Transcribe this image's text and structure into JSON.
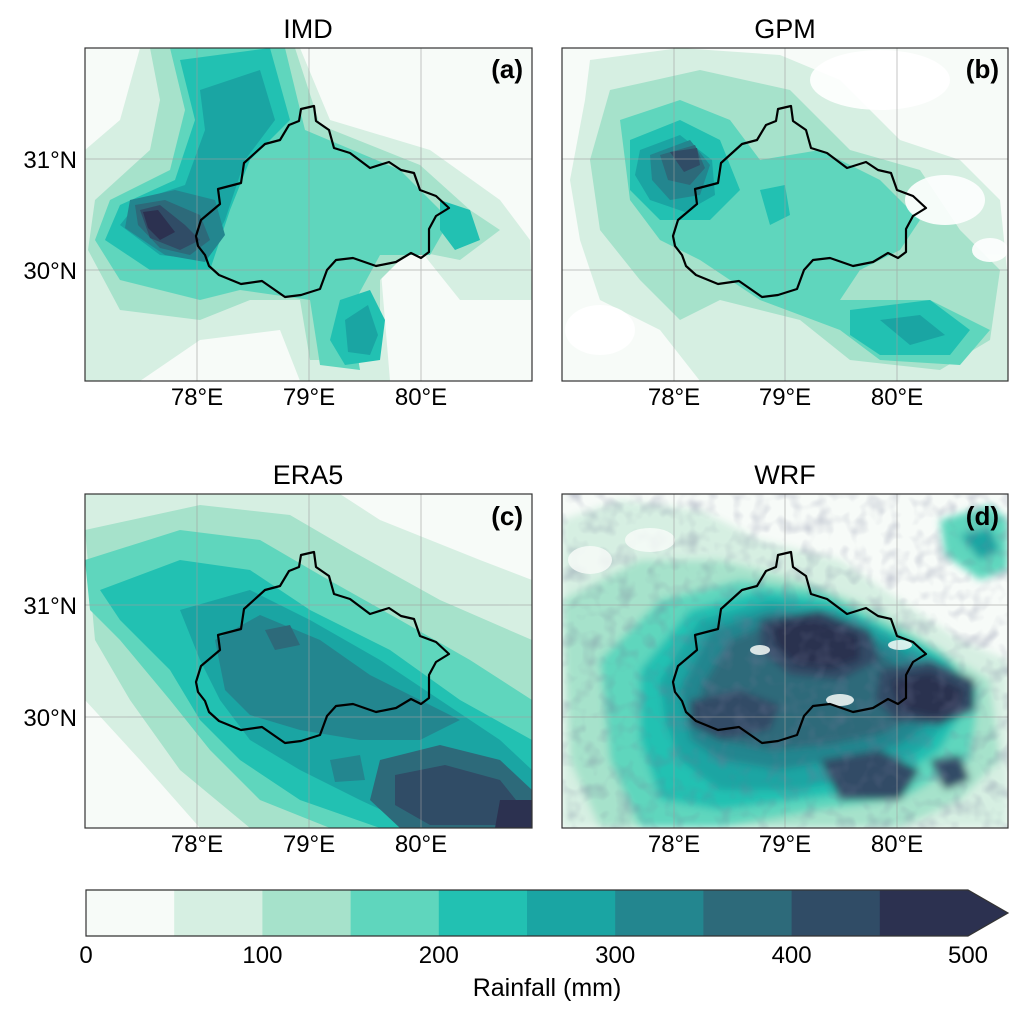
{
  "panels": [
    {
      "title": "IMD",
      "label": "(a)"
    },
    {
      "title": "GPM",
      "label": "(b)"
    },
    {
      "title": "ERA5",
      "label": "(c)"
    },
    {
      "title": "WRF",
      "label": "(d)"
    }
  ],
  "axes": {
    "lon_ticks": [
      "78°E",
      "79°E",
      "80°E"
    ],
    "lat_ticks": [
      "31°N",
      "30°N"
    ],
    "lon_range": [
      77.0,
      81.0
    ],
    "lat_range": [
      29.0,
      32.0
    ]
  },
  "colorbar": {
    "label": "Rainfall (mm)",
    "tick_labels": [
      "0",
      "100",
      "200",
      "300",
      "400",
      "500"
    ],
    "bounds": [
      0,
      50,
      100,
      150,
      200,
      250,
      300,
      350,
      400,
      450,
      500
    ],
    "colors": [
      "#f7fbf8",
      "#d6efe2",
      "#a6e2cb",
      "#5fd6bd",
      "#22c1b2",
      "#1aa5a3",
      "#23868f",
      "#2d6a7a",
      "#304c66",
      "#2c3150"
    ],
    "extend": "max"
  },
  "chart_data": [
    {
      "type": "heatmap",
      "title": "IMD",
      "panel_label": "(a)",
      "lon_range": [
        77.0,
        81.0
      ],
      "lat_range": [
        29.0,
        32.0
      ],
      "units": "mm",
      "peak_rainfall_regions": [
        {
          "lon": 77.6,
          "lat": 30.4,
          "value": 470
        },
        {
          "lon": 79.5,
          "lat": 29.3,
          "value": 370
        }
      ]
    },
    {
      "type": "heatmap",
      "title": "GPM",
      "panel_label": "(b)",
      "lon_range": [
        77.0,
        81.0
      ],
      "lat_range": [
        29.0,
        32.0
      ],
      "units": "mm",
      "peak_rainfall_regions": [
        {
          "lon": 78.0,
          "lat": 31.0,
          "value": 420
        },
        {
          "lon": 80.3,
          "lat": 29.5,
          "value": 330
        }
      ]
    },
    {
      "type": "heatmap",
      "title": "ERA5",
      "panel_label": "(c)",
      "lon_range": [
        77.0,
        81.0
      ],
      "lat_range": [
        29.0,
        32.0
      ],
      "units": "mm",
      "peak_rainfall_regions": [
        {
          "lon": 80.2,
          "lat": 29.2,
          "value": 420
        },
        {
          "lon": 78.8,
          "lat": 30.7,
          "value": 340
        }
      ]
    },
    {
      "type": "heatmap",
      "title": "WRF",
      "panel_label": "(d)",
      "lon_range": [
        77.0,
        81.0
      ],
      "lat_range": [
        29.0,
        32.0
      ],
      "units": "mm",
      "peak_rainfall_regions": [
        {
          "lon": 79.2,
          "lat": 30.8,
          "value": 500
        },
        {
          "lon": 80.3,
          "lat": 30.3,
          "value": 500
        },
        {
          "lon": 78.3,
          "lat": 29.9,
          "value": 480
        }
      ]
    }
  ]
}
